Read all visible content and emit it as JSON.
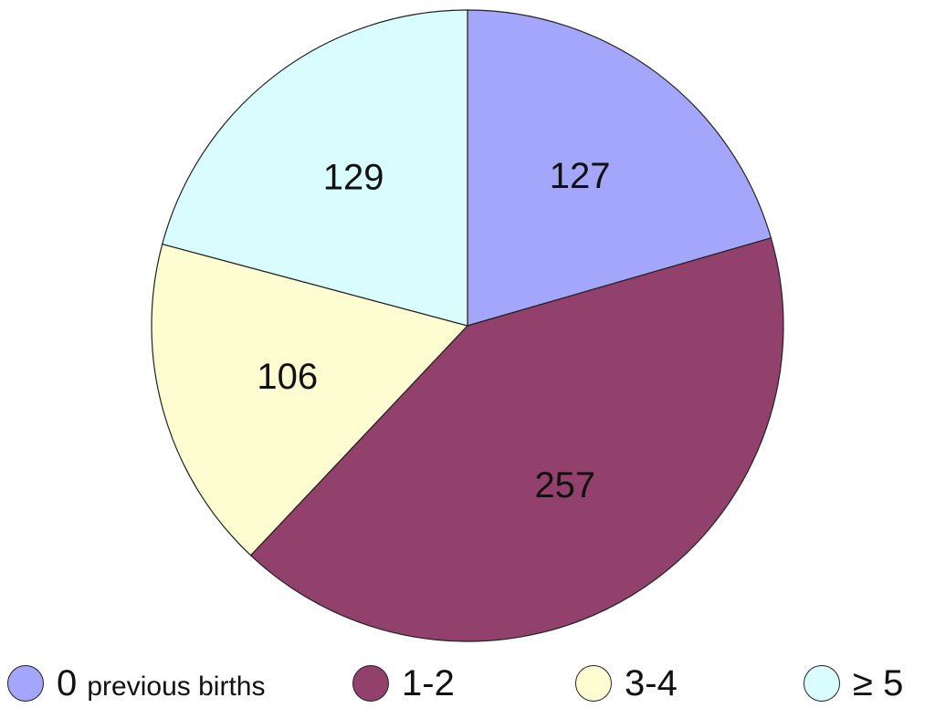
{
  "chart_data": {
    "type": "pie",
    "start_angle_deg": 0,
    "direction": "clockwise",
    "slices": [
      {
        "label": "0",
        "sublabel": "previous births",
        "value": 127,
        "color": "#a3a6fb"
      },
      {
        "label": "1-2",
        "sublabel": "",
        "value": 257,
        "color": "#91416c"
      },
      {
        "label": "3-4",
        "sublabel": "",
        "value": 106,
        "color": "#fdfdd1"
      },
      {
        "label": "≥ 5",
        "sublabel": "",
        "value": 129,
        "color": "#d9fcfe"
      }
    ],
    "legend_position": "bottom"
  }
}
